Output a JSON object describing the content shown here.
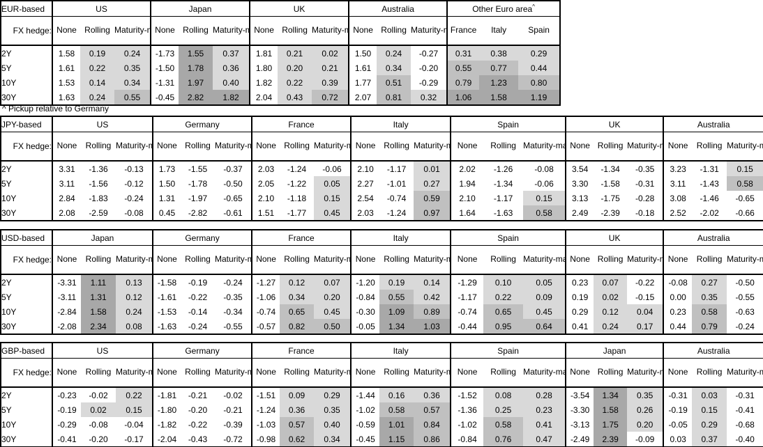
{
  "palette": {
    "background": "#ffffff",
    "text": "#000000",
    "border": "#000000",
    "shade_light": "#d9d9d9",
    "shade_medium": "#c0c0c0",
    "shade_dark": "#a8a8a8"
  },
  "shading_rule": {
    "applies_to": "Rolling and Maturity-matched columns, and all Other Euro area columns; None column never shaded",
    "bands": [
      {
        "min": 0.0,
        "max": 0.5,
        "shade": "light"
      },
      {
        "min": 0.5,
        "max": 1.0,
        "shade": "medium"
      },
      {
        "min": 1.0,
        "shade": "dark"
      }
    ]
  },
  "labels": {
    "fx_hedge": "FX hedge:",
    "hedge_cols": [
      "None",
      "Rolling",
      "Maturity-matched"
    ],
    "row_labels": [
      "2Y",
      "5Y",
      "10Y",
      "30Y"
    ],
    "footnote": "^ Pickup relative to Germany",
    "other_euro_sup": "^"
  },
  "tables": [
    {
      "base": "EUR-based",
      "groups": [
        {
          "name": "US",
          "values": [
            [
              "1.58",
              "0.19",
              "0.24"
            ],
            [
              "1.61",
              "0.22",
              "0.35"
            ],
            [
              "1.53",
              "0.14",
              "0.34"
            ],
            [
              "1.63",
              "0.24",
              "0.55"
            ]
          ]
        },
        {
          "name": "Japan",
          "values": [
            [
              "-1.73",
              "1.55",
              "0.37"
            ],
            [
              "-1.50",
              "1.78",
              "0.36"
            ],
            [
              "-1.31",
              "1.97",
              "0.40"
            ],
            [
              "-0.45",
              "2.82",
              "1.82"
            ]
          ]
        },
        {
          "name": "UK",
          "values": [
            [
              "1.81",
              "0.21",
              "0.02"
            ],
            [
              "1.80",
              "0.20",
              "0.21"
            ],
            [
              "1.82",
              "0.22",
              "0.39"
            ],
            [
              "2.04",
              "0.43",
              "0.72"
            ]
          ]
        },
        {
          "name": "Australia",
          "values": [
            [
              "1.50",
              "0.24",
              "-0.27"
            ],
            [
              "1.61",
              "0.34",
              "-0.20"
            ],
            [
              "1.77",
              "0.51",
              "-0.29"
            ],
            [
              "2.07",
              "0.81",
              "0.32"
            ]
          ]
        },
        {
          "name": "Other Euro area",
          "sup": "^",
          "cols": [
            "France",
            "Italy",
            "Spain"
          ],
          "shade_all": true,
          "values": [
            [
              "0.31",
              "0.38",
              "0.29"
            ],
            [
              "0.55",
              "0.77",
              "0.44"
            ],
            [
              "0.79",
              "1.23",
              "0.80"
            ],
            [
              "1.06",
              "1.58",
              "1.19"
            ]
          ]
        }
      ]
    },
    {
      "base": "JPY-based",
      "groups": [
        {
          "name": "US",
          "values": [
            [
              "3.31",
              "-1.36",
              "-0.13"
            ],
            [
              "3.11",
              "-1.56",
              "-0.12"
            ],
            [
              "2.84",
              "-1.83",
              "-0.24"
            ],
            [
              "2.08",
              "-2.59",
              "-0.08"
            ]
          ]
        },
        {
          "name": "Germany",
          "values": [
            [
              "1.73",
              "-1.55",
              "-0.37"
            ],
            [
              "1.50",
              "-1.78",
              "-0.50"
            ],
            [
              "1.31",
              "-1.97",
              "-0.65"
            ],
            [
              "0.45",
              "-2.82",
              "-0.61"
            ]
          ]
        },
        {
          "name": "France",
          "values": [
            [
              "2.03",
              "-1.24",
              "-0.06"
            ],
            [
              "2.05",
              "-1.22",
              "0.05"
            ],
            [
              "2.10",
              "-1.18",
              "0.15"
            ],
            [
              "1.51",
              "-1.77",
              "0.45"
            ]
          ]
        },
        {
          "name": "Italy",
          "values": [
            [
              "2.10",
              "-1.17",
              "0.01"
            ],
            [
              "2.27",
              "-1.01",
              "0.27"
            ],
            [
              "2.54",
              "-0.74",
              "0.59"
            ],
            [
              "2.03",
              "-1.24",
              "0.97"
            ]
          ]
        },
        {
          "name": "Spain",
          "values": [
            [
              "2.02",
              "-1.26",
              "-0.08"
            ],
            [
              "1.94",
              "-1.34",
              "-0.06"
            ],
            [
              "2.10",
              "-1.17",
              "0.15"
            ],
            [
              "1.64",
              "-1.63",
              "0.58"
            ]
          ]
        },
        {
          "name": "UK",
          "values": [
            [
              "3.54",
              "-1.34",
              "-0.35"
            ],
            [
              "3.30",
              "-1.58",
              "-0.31"
            ],
            [
              "3.13",
              "-1.75",
              "-0.28"
            ],
            [
              "2.49",
              "-2.39",
              "-0.18"
            ]
          ]
        },
        {
          "name": "Australia",
          "values": [
            [
              "3.23",
              "-1.31",
              "0.15"
            ],
            [
              "3.11",
              "-1.43",
              "0.58"
            ],
            [
              "3.08",
              "-1.46",
              "-0.65"
            ],
            [
              "2.52",
              "-2.02",
              "-0.66"
            ]
          ]
        }
      ]
    },
    {
      "base": "USD-based",
      "groups": [
        {
          "name": "Japan",
          "values": [
            [
              "-3.31",
              "1.11",
              "0.13"
            ],
            [
              "-3.11",
              "1.31",
              "0.12"
            ],
            [
              "-2.84",
              "1.58",
              "0.24"
            ],
            [
              "-2.08",
              "2.34",
              "0.08"
            ]
          ]
        },
        {
          "name": "Germany",
          "values": [
            [
              "-1.58",
              "-0.19",
              "-0.24"
            ],
            [
              "-1.61",
              "-0.22",
              "-0.35"
            ],
            [
              "-1.53",
              "-0.14",
              "-0.34"
            ],
            [
              "-1.63",
              "-0.24",
              "-0.55"
            ]
          ]
        },
        {
          "name": "France",
          "values": [
            [
              "-1.27",
              "0.12",
              "0.07"
            ],
            [
              "-1.06",
              "0.34",
              "0.20"
            ],
            [
              "-0.74",
              "0.65",
              "0.45"
            ],
            [
              "-0.57",
              "0.82",
              "0.50"
            ]
          ]
        },
        {
          "name": "Italy",
          "values": [
            [
              "-1.20",
              "0.19",
              "0.14"
            ],
            [
              "-0.84",
              "0.55",
              "0.42"
            ],
            [
              "-0.30",
              "1.09",
              "0.89"
            ],
            [
              "-0.05",
              "1.34",
              "1.03"
            ]
          ]
        },
        {
          "name": "Spain",
          "values": [
            [
              "-1.29",
              "0.10",
              "0.05"
            ],
            [
              "-1.17",
              "0.22",
              "0.09"
            ],
            [
              "-0.74",
              "0.65",
              "0.45"
            ],
            [
              "-0.44",
              "0.95",
              "0.64"
            ]
          ]
        },
        {
          "name": "UK",
          "values": [
            [
              "0.23",
              "0.07",
              "-0.22"
            ],
            [
              "0.19",
              "0.02",
              "-0.15"
            ],
            [
              "0.29",
              "0.12",
              "0.04"
            ],
            [
              "0.41",
              "0.24",
              "0.17"
            ]
          ]
        },
        {
          "name": "Australia",
          "values": [
            [
              "-0.08",
              "0.27",
              "-0.50"
            ],
            [
              "0.00",
              "0.35",
              "-0.55"
            ],
            [
              "0.23",
              "0.58",
              "-0.63"
            ],
            [
              "0.44",
              "0.79",
              "-0.24"
            ]
          ]
        }
      ]
    },
    {
      "base": "GBP-based",
      "groups": [
        {
          "name": "US",
          "values": [
            [
              "-0.23",
              "-0.02",
              "0.22"
            ],
            [
              "-0.19",
              "0.02",
              "0.15"
            ],
            [
              "-0.29",
              "-0.08",
              "-0.04"
            ],
            [
              "-0.41",
              "-0.20",
              "-0.17"
            ]
          ]
        },
        {
          "name": "Germany",
          "values": [
            [
              "-1.81",
              "-0.21",
              "-0.02"
            ],
            [
              "-1.80",
              "-0.20",
              "-0.21"
            ],
            [
              "-1.82",
              "-0.22",
              "-0.39"
            ],
            [
              "-2.04",
              "-0.43",
              "-0.72"
            ]
          ]
        },
        {
          "name": "France",
          "values": [
            [
              "-1.51",
              "0.09",
              "0.29"
            ],
            [
              "-1.24",
              "0.36",
              "0.35"
            ],
            [
              "-1.03",
              "0.57",
              "0.40"
            ],
            [
              "-0.98",
              "0.62",
              "0.34"
            ]
          ]
        },
        {
          "name": "Italy",
          "values": [
            [
              "-1.44",
              "0.16",
              "0.36"
            ],
            [
              "-1.02",
              "0.58",
              "0.57"
            ],
            [
              "-0.59",
              "1.01",
              "0.84"
            ],
            [
              "-0.45",
              "1.15",
              "0.86"
            ]
          ]
        },
        {
          "name": "Spain",
          "values": [
            [
              "-1.52",
              "0.08",
              "0.28"
            ],
            [
              "-1.36",
              "0.25",
              "0.23"
            ],
            [
              "-1.02",
              "0.58",
              "0.41"
            ],
            [
              "-0.84",
              "0.76",
              "0.47"
            ]
          ]
        },
        {
          "name": "Japan",
          "values": [
            [
              "-3.54",
              "1.34",
              "0.35"
            ],
            [
              "-3.30",
              "1.58",
              "0.26"
            ],
            [
              "-3.13",
              "1.75",
              "0.20"
            ],
            [
              "-2.49",
              "2.39",
              "-0.09"
            ]
          ]
        },
        {
          "name": "Australia",
          "values": [
            [
              "-0.31",
              "0.03",
              "-0.31"
            ],
            [
              "-0.19",
              "0.15",
              "-0.41"
            ],
            [
              "-0.05",
              "0.29",
              "-0.68"
            ],
            [
              "0.03",
              "0.37",
              "-0.40"
            ]
          ]
        }
      ]
    }
  ]
}
